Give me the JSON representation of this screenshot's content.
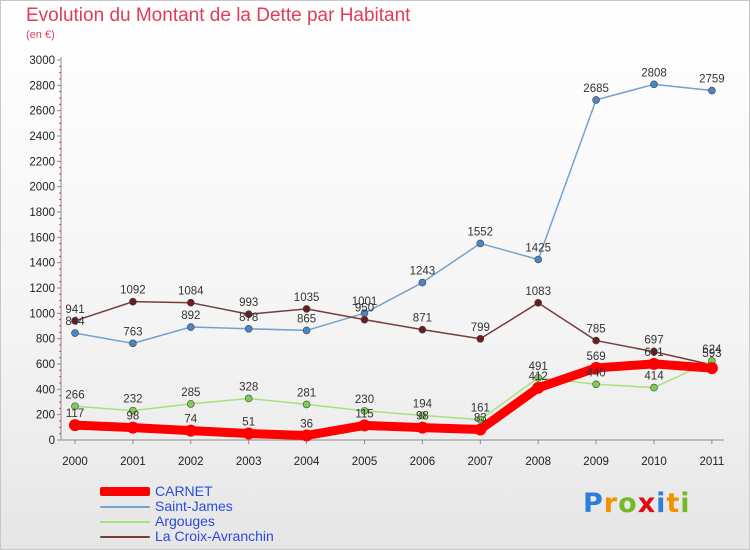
{
  "chart_data": {
    "type": "line",
    "title": "Evolution du Montant de la Dette par Habitant",
    "subtitle": "(en €)",
    "x": [
      "2000",
      "2001",
      "2002",
      "2003",
      "2004",
      "2005",
      "2006",
      "2007",
      "2008",
      "2009",
      "2010",
      "2011"
    ],
    "ylim": [
      0,
      3000
    ],
    "yticks": [
      0,
      200,
      400,
      600,
      800,
      1000,
      1200,
      1400,
      1600,
      1800,
      2000,
      2200,
      2400,
      2600,
      2800,
      3000
    ],
    "grid": false,
    "legend_position": "bottom-left",
    "series": [
      {
        "name": "CARNET",
        "color": "#ff0000",
        "dot": "#ff0000",
        "width": 9,
        "values": [
          117,
          98,
          74,
          51,
          36,
          115,
          98,
          83,
          412,
          569,
          601,
          567
        ],
        "labels": [
          "117",
          "98",
          "74",
          "51",
          "36",
          "115",
          "98",
          "83",
          "412",
          "569",
          "601",
          ""
        ]
      },
      {
        "name": "Saint-James",
        "color": "#74a2cf",
        "dot": "#4a86c5",
        "width": 1.5,
        "values": [
          844,
          763,
          892,
          878,
          865,
          1001,
          1243,
          1552,
          1425,
          2685,
          2808,
          2759
        ],
        "labels": [
          "844",
          "763",
          "892",
          "878",
          "865",
          "1001",
          "1243",
          "1552",
          "1425",
          "2685",
          "2808",
          "2759"
        ]
      },
      {
        "name": "Argouges",
        "color": "#a6e27c",
        "dot": "#7ccf4e",
        "width": 1.5,
        "values": [
          266,
          232,
          285,
          328,
          281,
          230,
          194,
          161,
          491,
          440,
          414,
          624
        ],
        "labels": [
          "266",
          "232",
          "285",
          "328",
          "281",
          "230",
          "194",
          "161",
          "491",
          "440",
          "414",
          "624"
        ]
      },
      {
        "name": "La Croix-Avranchin",
        "color": "#7a3b3b",
        "dot": "#6b1d1d",
        "width": 1.5,
        "values": [
          941,
          1092,
          1084,
          993,
          1035,
          950,
          871,
          799,
          1083,
          785,
          697,
          593
        ],
        "labels": [
          "941",
          "1092",
          "1084",
          "993",
          "1035",
          "950",
          "871",
          "799",
          "1083",
          "785",
          "697",
          "593"
        ]
      }
    ]
  },
  "logo": {
    "text": "Proxiti",
    "letter_colors": [
      "#2c7fd6",
      "#f39200",
      "#76b82a",
      "#e30613",
      "#2c7fd6",
      "#f39200",
      "#76b82a"
    ]
  }
}
